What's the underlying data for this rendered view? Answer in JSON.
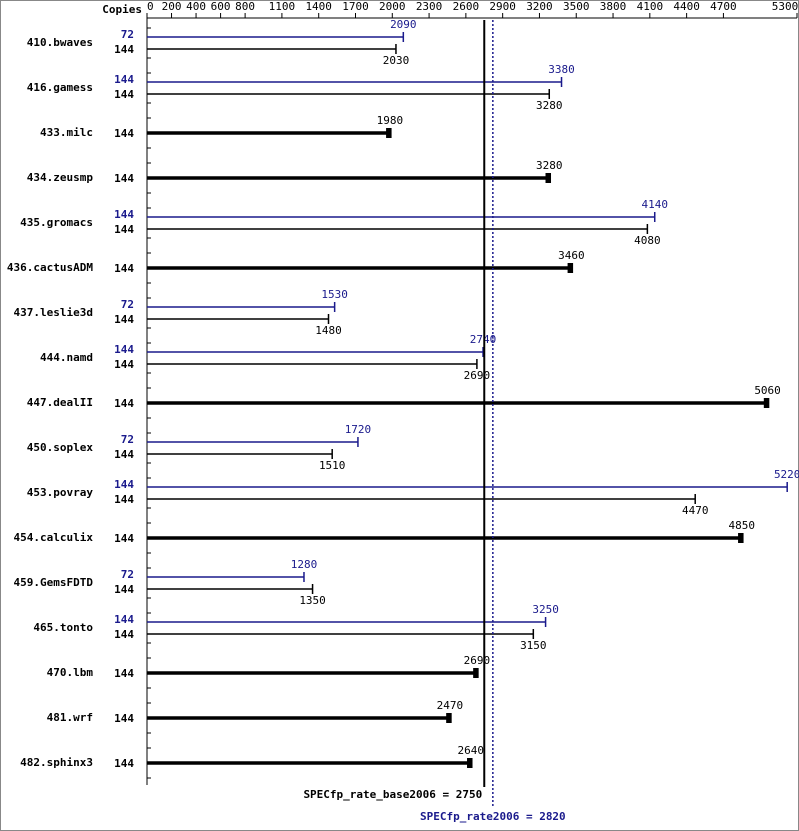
{
  "chart_data": {
    "type": "bar",
    "orientation": "horizontal",
    "copies_header": "Copies",
    "categories": [
      "410.bwaves",
      "416.gamess",
      "433.milc",
      "434.zeusmp",
      "435.gromacs",
      "436.cactusADM",
      "437.leslie3d",
      "444.namd",
      "447.dealII",
      "450.soplex",
      "453.povray",
      "454.calculix",
      "459.GemsFDTD",
      "465.tonto",
      "470.lbm",
      "481.wrf",
      "482.sphinx3"
    ],
    "series": [
      {
        "color": "#1a1a8c",
        "copies": [
          72,
          144,
          null,
          null,
          144,
          null,
          72,
          144,
          null,
          72,
          144,
          null,
          72,
          144,
          null,
          null,
          null
        ],
        "values": [
          2090,
          3380,
          null,
          null,
          4140,
          null,
          1530,
          2740,
          null,
          1720,
          5220,
          null,
          1280,
          3250,
          null,
          null,
          null
        ]
      },
      {
        "color": "#000000",
        "copies": [
          144,
          144,
          144,
          144,
          144,
          144,
          144,
          144,
          144,
          144,
          144,
          144,
          144,
          144,
          144,
          144,
          144
        ],
        "values": [
          2030,
          3280,
          1980,
          3280,
          4080,
          3460,
          1480,
          2690,
          5060,
          1510,
          4470,
          4850,
          1350,
          3150,
          2690,
          2470,
          2640
        ]
      }
    ],
    "reference_lines": [
      {
        "label": "SPECfp_rate_base2006 = 2750",
        "value": 2750,
        "color": "#000000",
        "style": "solid"
      },
      {
        "label": "SPECfp_rate2006 = 2820",
        "value": 2820,
        "color": "#1a1a8c",
        "style": "dotted"
      }
    ],
    "xlim": [
      0,
      5300
    ],
    "xticks": [
      0,
      200,
      400,
      600,
      800,
      1100,
      1400,
      1700,
      2000,
      2300,
      2600,
      2900,
      3200,
      3500,
      3800,
      4100,
      4400,
      4700,
      5300
    ]
  }
}
